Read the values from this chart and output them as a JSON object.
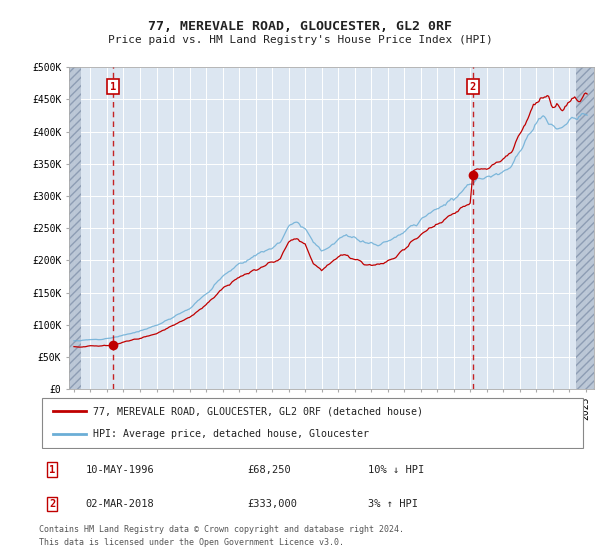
{
  "title": "77, MEREVALE ROAD, GLOUCESTER, GL2 0RF",
  "subtitle": "Price paid vs. HM Land Registry's House Price Index (HPI)",
  "ylabel_ticks": [
    0,
    50000,
    100000,
    150000,
    200000,
    250000,
    300000,
    350000,
    400000,
    450000,
    500000
  ],
  "ylabel_labels": [
    "£0",
    "£50K",
    "£100K",
    "£150K",
    "£200K",
    "£250K",
    "£300K",
    "£350K",
    "£400K",
    "£450K",
    "£500K"
  ],
  "xlim_left": 1993.7,
  "xlim_right": 2025.5,
  "ylim": [
    0,
    500000
  ],
  "hatch_left_end": 1994.42,
  "hatch_right_start": 2024.42,
  "transaction1_x": 1996.36,
  "transaction1_y": 68250,
  "transaction2_x": 2018.17,
  "transaction2_y": 333000,
  "plot_bg": "#dce6f1",
  "grid_color": "#ffffff",
  "legend_line1": "77, MEREVALE ROAD, GLOUCESTER, GL2 0RF (detached house)",
  "legend_line2": "HPI: Average price, detached house, Gloucester",
  "footnote1": "Contains HM Land Registry data © Crown copyright and database right 2024.",
  "footnote2": "This data is licensed under the Open Government Licence v3.0.",
  "table1_label": "1",
  "table1_date": "10-MAY-1996",
  "table1_price": "£68,250",
  "table1_hpi": "10% ↓ HPI",
  "table2_label": "2",
  "table2_date": "02-MAR-2018",
  "table2_price": "£333,000",
  "table2_hpi": "3% ↑ HPI"
}
